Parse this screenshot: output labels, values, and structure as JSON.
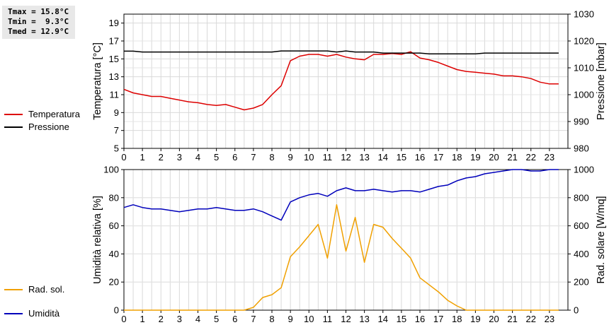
{
  "stats": {
    "tmax": "Tmax = 15.8°C",
    "tmin": "Tmin =  9.3°C",
    "tmed": "Tmed = 12.9°C"
  },
  "legend_top": [
    {
      "label": "Temperatura",
      "color": "#dd0000"
    },
    {
      "label": "Pressione",
      "color": "#000000"
    }
  ],
  "legend_bottom": [
    {
      "label": "Umidità",
      "color": "#0000bb"
    },
    {
      "label": "Rad. sol.",
      "color": "#f0a000"
    }
  ],
  "chart_data": [
    {
      "type": "line",
      "xlim": [
        0,
        24
      ],
      "x_ticks": [
        "0",
        "1",
        "2",
        "3",
        "4",
        "5",
        "6",
        "7",
        "8",
        "9",
        "10",
        "11",
        "12",
        "13",
        "14",
        "15",
        "16",
        "17",
        "18",
        "19",
        "20",
        "21",
        "22",
        "23"
      ],
      "ylabel": "Temperatura [°C]",
      "ylim": [
        5,
        20
      ],
      "y_ticks": [
        "5",
        "7",
        "9",
        "11",
        "13",
        "15",
        "17",
        "19"
      ],
      "y2label": "Pressione [mbar]",
      "y2lim": [
        980,
        1030
      ],
      "y2_ticks": [
        "980",
        "990",
        "1000",
        "1010",
        "1020",
        "1030"
      ],
      "grid": true,
      "series": [
        {
          "name": "Temperatura",
          "axis": "left",
          "color": "#dd0000",
          "x": [
            0,
            0.5,
            1,
            1.5,
            2,
            2.5,
            3,
            3.5,
            4,
            4.5,
            5,
            5.5,
            6,
            6.5,
            7,
            7.5,
            8,
            8.5,
            9,
            9.5,
            10,
            10.5,
            11,
            11.5,
            12,
            12.5,
            13,
            13.5,
            14,
            14.5,
            15,
            15.5,
            16,
            16.5,
            17,
            17.5,
            18,
            18.5,
            19,
            19.5,
            20,
            20.5,
            21,
            21.5,
            22,
            22.5,
            23,
            23.5
          ],
          "y": [
            11.6,
            11.2,
            11.0,
            10.8,
            10.8,
            10.6,
            10.4,
            10.2,
            10.1,
            9.9,
            9.8,
            9.9,
            9.6,
            9.3,
            9.5,
            9.9,
            11.0,
            12.0,
            14.8,
            15.3,
            15.5,
            15.5,
            15.3,
            15.5,
            15.2,
            15.0,
            14.9,
            15.5,
            15.5,
            15.6,
            15.5,
            15.8,
            15.1,
            14.9,
            14.6,
            14.2,
            13.8,
            13.6,
            13.5,
            13.4,
            13.3,
            13.1,
            13.1,
            13.0,
            12.8,
            12.4,
            12.2,
            12.2
          ]
        },
        {
          "name": "Pressione",
          "axis": "right",
          "color": "#000000",
          "x": [
            0,
            0.5,
            1,
            1.5,
            2,
            2.5,
            3,
            3.5,
            4,
            4.5,
            5,
            5.5,
            6,
            6.5,
            7,
            7.5,
            8,
            8.5,
            9,
            9.5,
            10,
            10.5,
            11,
            11.5,
            12,
            12.5,
            13,
            13.5,
            14,
            14.5,
            15,
            15.5,
            16,
            16.5,
            17,
            17.5,
            18,
            18.5,
            19,
            19.5,
            20,
            20.5,
            21,
            21.5,
            22,
            22.5,
            23,
            23.5
          ],
          "y": [
            1016.2,
            1016.2,
            1015.9,
            1015.9,
            1015.9,
            1015.9,
            1015.9,
            1015.9,
            1015.9,
            1015.9,
            1015.9,
            1015.9,
            1015.9,
            1015.9,
            1015.9,
            1015.9,
            1015.9,
            1016.3,
            1016.3,
            1016.3,
            1016.3,
            1016.3,
            1016.3,
            1015.9,
            1016.3,
            1015.9,
            1015.9,
            1015.9,
            1015.5,
            1015.5,
            1015.5,
            1015.5,
            1015.5,
            1015.2,
            1015.2,
            1015.2,
            1015.2,
            1015.2,
            1015.2,
            1015.5,
            1015.5,
            1015.5,
            1015.5,
            1015.5,
            1015.5,
            1015.5,
            1015.5,
            1015.5
          ]
        }
      ]
    },
    {
      "type": "line",
      "xlim": [
        0,
        24
      ],
      "x_ticks": [
        "0",
        "1",
        "2",
        "3",
        "4",
        "5",
        "6",
        "7",
        "8",
        "9",
        "10",
        "11",
        "12",
        "13",
        "14",
        "15",
        "16",
        "17",
        "18",
        "19",
        "20",
        "21",
        "22",
        "23"
      ],
      "ylabel": "Umidità relativa [%]",
      "ylim": [
        0,
        100
      ],
      "y_ticks": [
        "0",
        "20",
        "40",
        "60",
        "80",
        "100"
      ],
      "y2label": "Rad. solare [W/mq]",
      "y2lim": [
        0,
        1000
      ],
      "y2_ticks": [
        "0",
        "200",
        "400",
        "600",
        "800",
        "1000"
      ],
      "grid": true,
      "series": [
        {
          "name": "Umidità",
          "axis": "left",
          "color": "#0000bb",
          "x": [
            0,
            0.5,
            1,
            1.5,
            2,
            2.5,
            3,
            3.5,
            4,
            4.5,
            5,
            5.5,
            6,
            6.5,
            7,
            7.5,
            8,
            8.5,
            9,
            9.5,
            10,
            10.5,
            11,
            11.5,
            12,
            12.5,
            13,
            13.5,
            14,
            14.5,
            15,
            15.5,
            16,
            16.5,
            17,
            17.5,
            18,
            18.5,
            19,
            19.5,
            20,
            20.5,
            21,
            21.5,
            22,
            22.5,
            23,
            23.5
          ],
          "y": [
            73,
            75,
            73,
            72,
            72,
            71,
            70,
            71,
            72,
            72,
            73,
            72,
            71,
            71,
            72,
            70,
            67,
            64,
            77,
            80,
            82,
            83,
            81,
            85,
            87,
            85,
            85,
            86,
            85,
            84,
            85,
            85,
            84,
            86,
            88,
            89,
            92,
            94,
            95,
            97,
            98,
            99,
            100,
            100,
            99,
            99,
            100,
            100
          ]
        },
        {
          "name": "Rad. sol.",
          "axis": "right",
          "color": "#f0a000",
          "x": [
            0,
            0.5,
            1,
            1.5,
            2,
            2.5,
            3,
            3.5,
            4,
            4.5,
            5,
            5.5,
            6,
            6.5,
            7,
            7.5,
            8,
            8.5,
            9,
            9.5,
            10,
            10.5,
            11,
            11.5,
            12,
            12.5,
            13,
            13.5,
            14,
            14.5,
            15,
            15.5,
            16,
            16.5,
            17,
            17.5,
            18,
            18.5,
            19,
            19.5,
            20,
            20.5,
            21,
            21.5,
            22,
            22.5,
            23,
            23.5
          ],
          "y": [
            0,
            0,
            0,
            0,
            0,
            0,
            0,
            0,
            0,
            0,
            0,
            0,
            0,
            0,
            20,
            90,
            110,
            160,
            380,
            450,
            530,
            610,
            370,
            750,
            420,
            660,
            340,
            610,
            590,
            510,
            440,
            370,
            230,
            180,
            130,
            70,
            30,
            0,
            0,
            0,
            0,
            0,
            0,
            0,
            0,
            0,
            0,
            0
          ]
        }
      ]
    }
  ]
}
